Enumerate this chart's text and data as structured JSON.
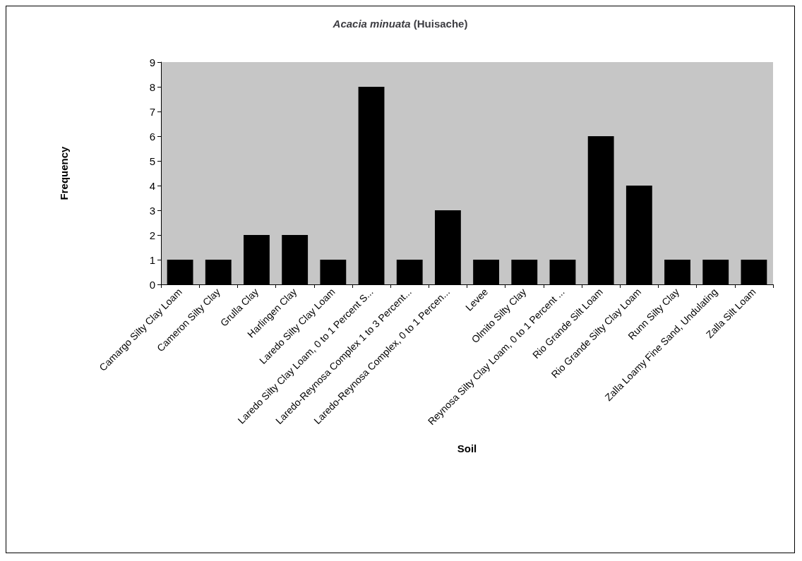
{
  "chart_data": {
    "type": "bar",
    "title": "Acacia minuata (Huisache)",
    "xlabel": "Soil",
    "ylabel": "Frequency",
    "categories": [
      "Camargo Silty Clay Loam",
      "Cameron Silty Clay",
      "Grulla Clay",
      "Harlingen Clay",
      "Laredo Silty Clay Loam",
      "Laredo Silty Clay Loam, 0 to 1 Percent S...",
      "Laredo-Reynosa Complex 1 to 3 Percent...",
      "Laredo-Reynosa Complex, 0 to 1 Percen...",
      "Levee",
      "Olmito Silty Clay",
      "Reynosa Silty Clay Loam, 0 to 1 Percent ...",
      "Rio Grande Silt Loam",
      "Rio Grande Silty Clay Loam",
      "Runn Silty Clay",
      "Zalla Loamy Fine Sand, Undulating",
      "Zalla Silt Loam"
    ],
    "values": [
      1,
      1,
      2,
      2,
      1,
      8,
      1,
      3,
      1,
      1,
      1,
      6,
      4,
      1,
      1,
      1
    ],
    "color": "#000000",
    "ylim": [
      0,
      9
    ],
    "yticks": [
      0,
      1,
      2,
      3,
      4,
      5,
      6,
      7,
      8,
      9
    ],
    "grid": false
  }
}
